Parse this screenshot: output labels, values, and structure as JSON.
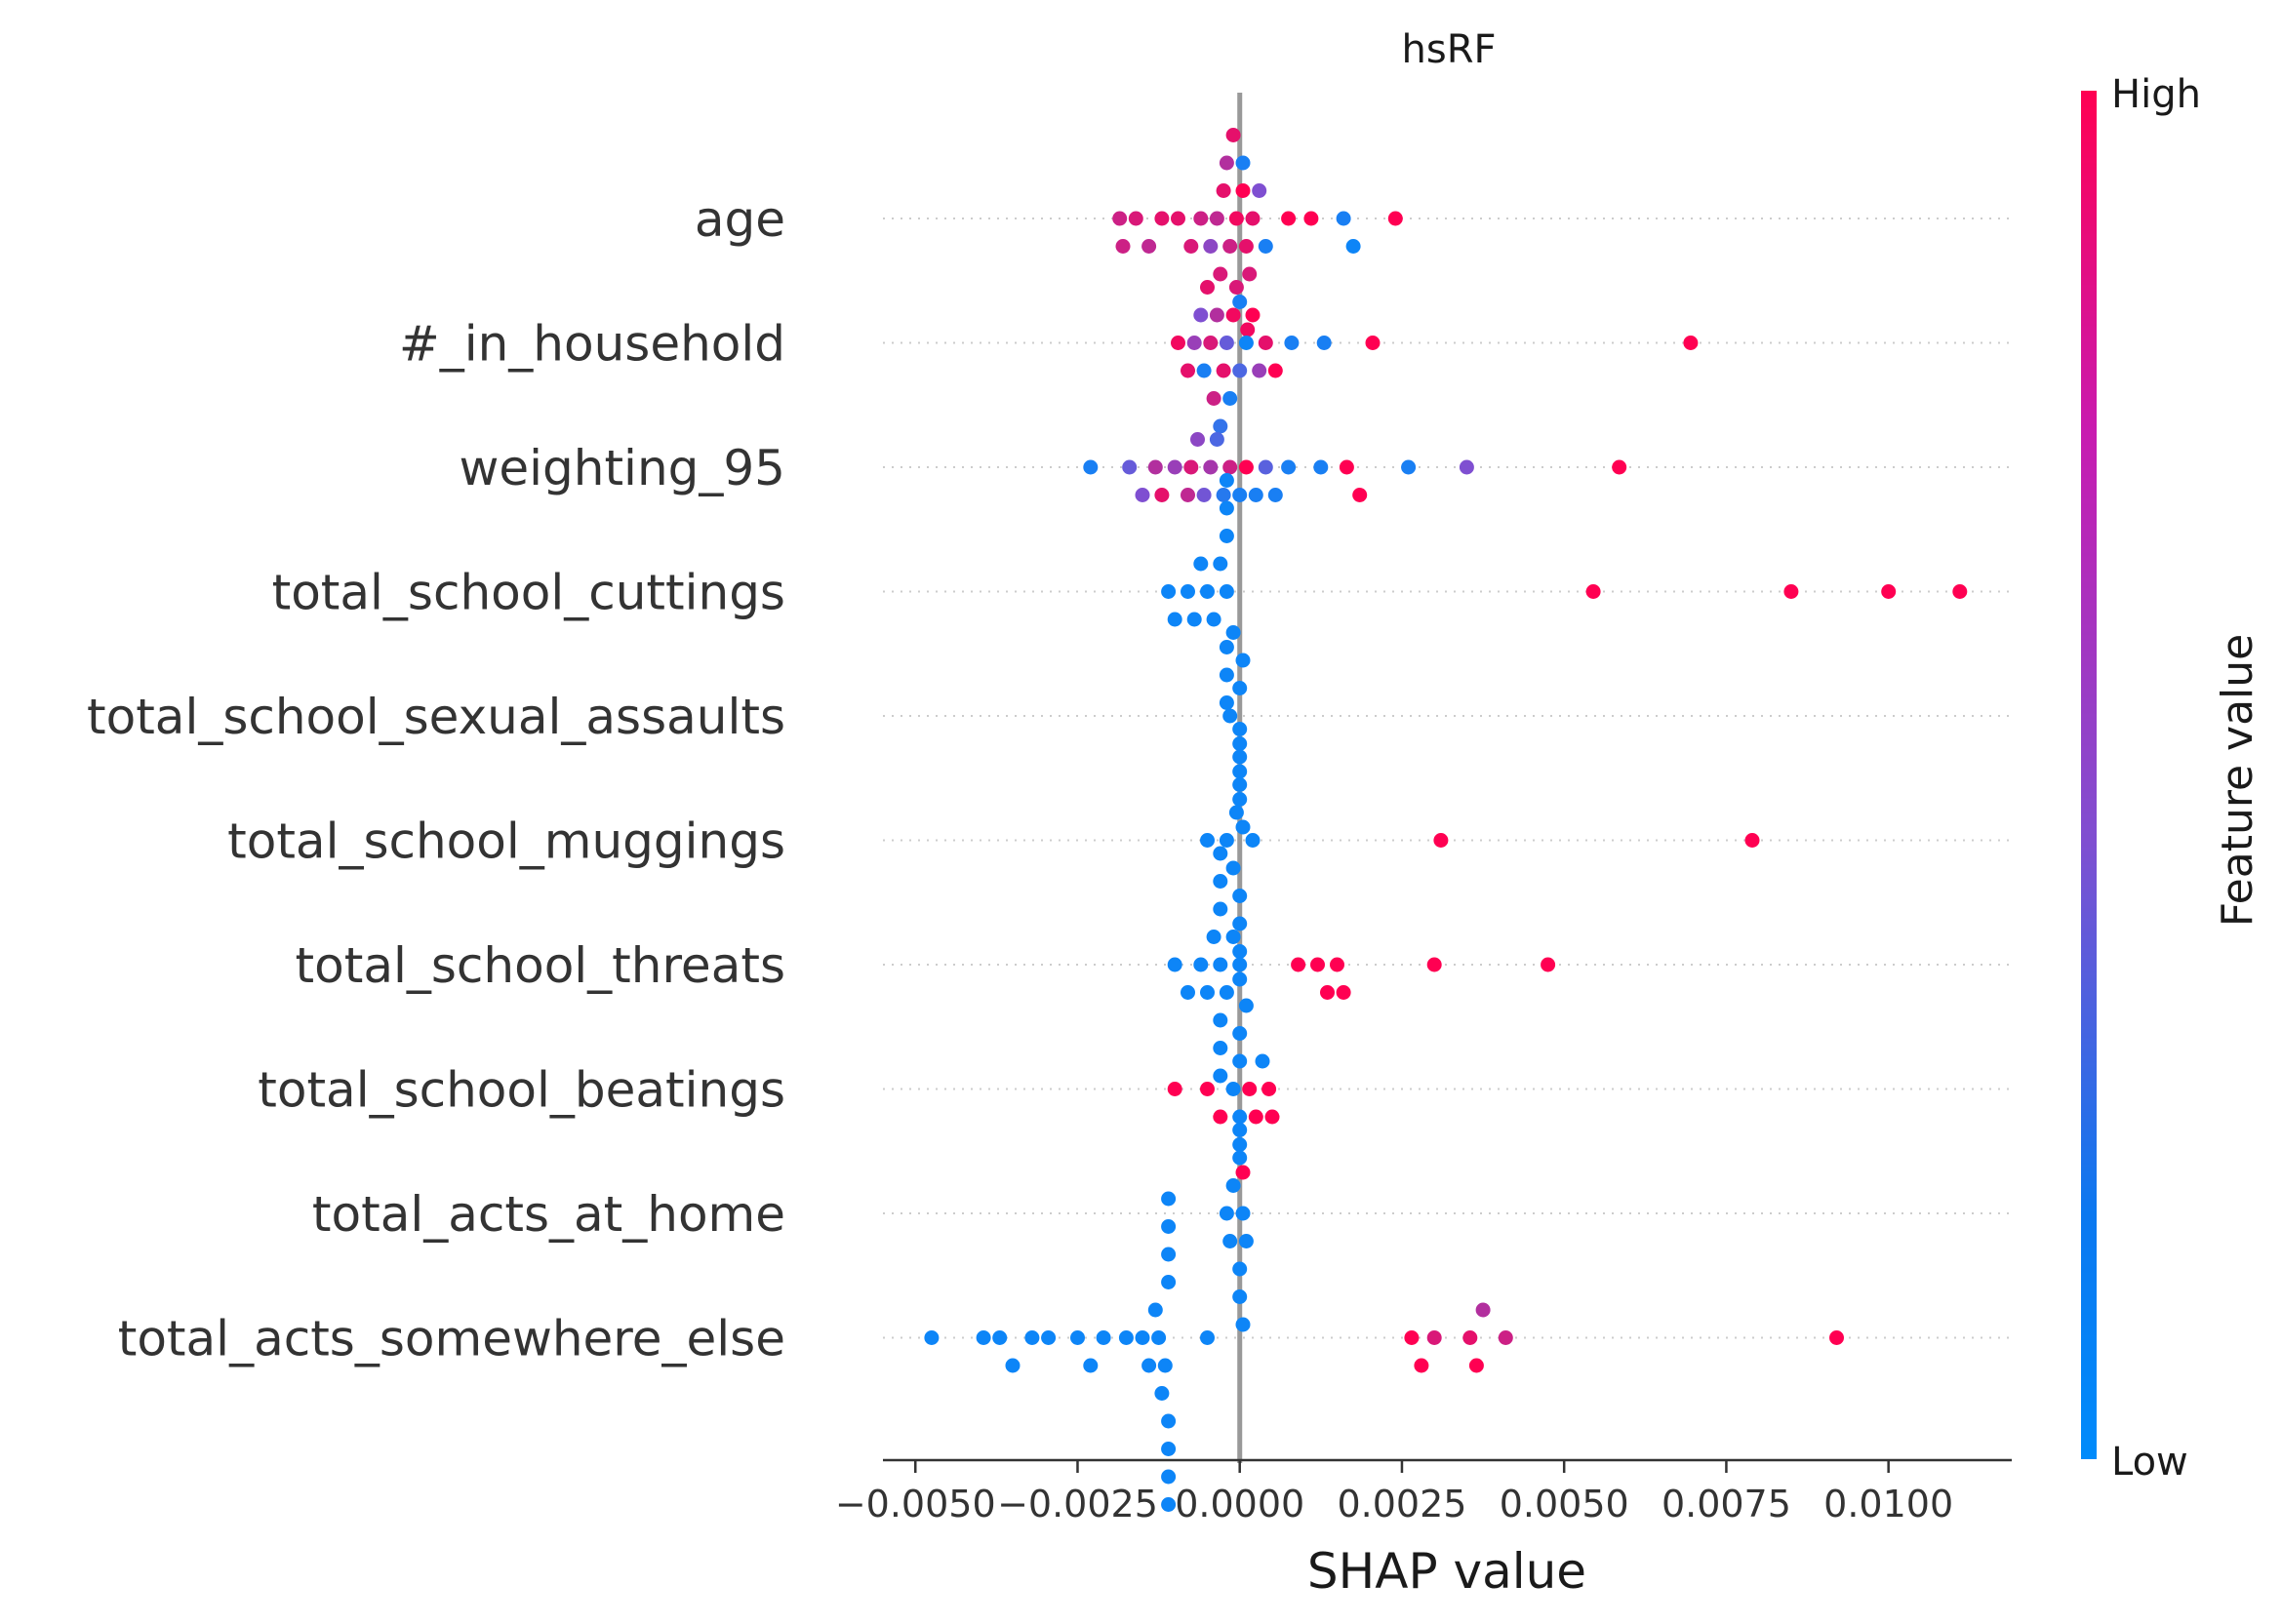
{
  "chart_data": {
    "type": "scatter",
    "subtype": "shap-beeswarm",
    "title": "hsRF",
    "xlabel": "SHAP value",
    "xlim": [
      -0.0055,
      0.0119
    ],
    "xticks": [
      -0.005,
      -0.0025,
      0.0,
      0.0025,
      0.005,
      0.0075,
      0.01
    ],
    "xtick_labels": [
      "−0.0050",
      "−0.0025",
      "0.0000",
      "0.0025",
      "0.0050",
      "0.0075",
      "0.0100"
    ],
    "features": [
      "age",
      "#_in_household",
      "weighting_95",
      "total_school_cuttings",
      "total_school_sexual_assaults",
      "total_school_muggings",
      "total_school_threats",
      "total_school_beatings",
      "total_acts_at_home",
      "total_acts_somewhere_else"
    ],
    "colorbar": {
      "label": "Feature value",
      "high_label": "High",
      "low_label": "Low",
      "high_color": "#ff0052",
      "mid_color": "#7f4fd1",
      "low_color": "#008bfb"
    },
    "series": [
      {
        "feature": "age",
        "points": [
          {
            "x": -0.00185,
            "v": 0.8
          },
          {
            "x": -0.0018,
            "v": 0.8
          },
          {
            "x": -0.0016,
            "v": 0.85
          },
          {
            "x": -0.0014,
            "v": 0.75
          },
          {
            "x": -0.0012,
            "v": 0.9
          },
          {
            "x": -0.00095,
            "v": 0.9
          },
          {
            "x": -0.00075,
            "v": 0.85
          },
          {
            "x": -0.0006,
            "v": 0.8
          },
          {
            "x": -0.00045,
            "v": 0.55
          },
          {
            "x": -0.00035,
            "v": 0.75
          },
          {
            "x": -0.00025,
            "v": 0.9
          },
          {
            "x": -0.00015,
            "v": 0.8
          },
          {
            "x": -5e-05,
            "v": 0.95
          },
          {
            "x": 5e-05,
            "v": 1.0
          },
          {
            "x": 0.0001,
            "v": 0.9
          },
          {
            "x": 0.00015,
            "v": 0.85
          },
          {
            "x": 0.0002,
            "v": 0.9
          },
          {
            "x": 0.0003,
            "v": 0.5
          },
          {
            "x": 0.0004,
            "v": 0.1
          },
          {
            "x": 0.00075,
            "v": 1.0
          },
          {
            "x": 0.0011,
            "v": 1.0
          },
          {
            "x": 0.0016,
            "v": 0.1
          },
          {
            "x": 0.00175,
            "v": 0.05
          },
          {
            "x": 0.0024,
            "v": 1.0
          },
          {
            "x": 5e-05,
            "v": 0.1
          },
          {
            "x": 0.0,
            "v": 0.1
          },
          {
            "x": -0.0003,
            "v": 0.85
          },
          {
            "x": -0.0001,
            "v": 0.9
          },
          {
            "x": 0.00012,
            "v": 0.95
          },
          {
            "x": -0.0002,
            "v": 0.7
          }
        ]
      },
      {
        "feature": "#_in_household",
        "points": [
          {
            "x": -0.00095,
            "v": 0.95
          },
          {
            "x": -0.0008,
            "v": 0.9
          },
          {
            "x": -0.0007,
            "v": 0.6
          },
          {
            "x": -0.0006,
            "v": 0.5
          },
          {
            "x": -0.00055,
            "v": 0.1
          },
          {
            "x": -0.00045,
            "v": 0.85
          },
          {
            "x": -0.0004,
            "v": 0.8
          },
          {
            "x": -0.00035,
            "v": 0.7
          },
          {
            "x": -0.00025,
            "v": 0.9
          },
          {
            "x": -0.0002,
            "v": 0.4
          },
          {
            "x": -0.00015,
            "v": 0.1
          },
          {
            "x": -0.0001,
            "v": 0.95
          },
          {
            "x": 0.0,
            "v": 0.3
          },
          {
            "x": 0.0001,
            "v": 0.05
          },
          {
            "x": 0.0002,
            "v": 1.0
          },
          {
            "x": 0.0003,
            "v": 0.6
          },
          {
            "x": 0.0004,
            "v": 0.9
          },
          {
            "x": 0.00055,
            "v": 1.0
          },
          {
            "x": 0.0008,
            "v": 0.1
          },
          {
            "x": 0.0013,
            "v": 0.1
          },
          {
            "x": 0.00205,
            "v": 1.0
          },
          {
            "x": 0.00695,
            "v": 1.0
          },
          {
            "x": -0.0005,
            "v": 0.9
          },
          {
            "x": -0.0003,
            "v": 0.2
          },
          {
            "x": -5e-05,
            "v": 0.85
          }
        ]
      },
      {
        "feature": "weighting_95",
        "points": [
          {
            "x": -0.0023,
            "v": 0.1
          },
          {
            "x": -0.0017,
            "v": 0.4
          },
          {
            "x": -0.0015,
            "v": 0.5
          },
          {
            "x": -0.0013,
            "v": 0.7
          },
          {
            "x": -0.0012,
            "v": 0.9
          },
          {
            "x": -0.001,
            "v": 0.6
          },
          {
            "x": -0.0008,
            "v": 0.75
          },
          {
            "x": -0.00075,
            "v": 0.85
          },
          {
            "x": -0.00065,
            "v": 0.55
          },
          {
            "x": -0.00055,
            "v": 0.45
          },
          {
            "x": -0.00045,
            "v": 0.65
          },
          {
            "x": -0.00035,
            "v": 0.3
          },
          {
            "x": -0.00025,
            "v": 0.15
          },
          {
            "x": -0.00015,
            "v": 0.8
          },
          {
            "x": 0.0,
            "v": 0.1
          },
          {
            "x": 0.0001,
            "v": 1.0
          },
          {
            "x": 0.00025,
            "v": 0.1
          },
          {
            "x": 0.0004,
            "v": 0.35
          },
          {
            "x": 0.00055,
            "v": 0.1
          },
          {
            "x": 0.00075,
            "v": 0.1
          },
          {
            "x": 0.00125,
            "v": 0.1
          },
          {
            "x": 0.00165,
            "v": 1.0
          },
          {
            "x": 0.00185,
            "v": 1.0
          },
          {
            "x": 0.0026,
            "v": 0.1
          },
          {
            "x": 0.0035,
            "v": 0.5
          },
          {
            "x": 0.00585,
            "v": 1.0
          }
        ]
      },
      {
        "feature": "total_school_cuttings",
        "points": [
          {
            "x": -0.0011,
            "v": 0.05
          },
          {
            "x": -0.001,
            "v": 0.05
          },
          {
            "x": -0.0008,
            "v": 0.05
          },
          {
            "x": -0.0007,
            "v": 0.05
          },
          {
            "x": -0.0006,
            "v": 0.05
          },
          {
            "x": -0.0005,
            "v": 0.05
          },
          {
            "x": -0.0004,
            "v": 0.05
          },
          {
            "x": -0.0003,
            "v": 0.05
          },
          {
            "x": -0.0002,
            "v": 0.05
          },
          {
            "x": -0.0002,
            "v": 0.05
          },
          {
            "x": -0.0002,
            "v": 0.05
          },
          {
            "x": -0.0002,
            "v": 0.05
          },
          {
            "x": -0.0002,
            "v": 0.05
          },
          {
            "x": -0.0002,
            "v": 0.05
          },
          {
            "x": -0.0002,
            "v": 0.05
          },
          {
            "x": 0.00545,
            "v": 1.0
          },
          {
            "x": 0.0085,
            "v": 1.0
          },
          {
            "x": 0.01,
            "v": 1.0
          },
          {
            "x": 0.0111,
            "v": 1.0
          }
        ]
      },
      {
        "feature": "total_school_sexual_assaults",
        "points": [
          {
            "x": -0.00015,
            "v": 0.05
          },
          {
            "x": 0.0,
            "v": 0.05
          },
          {
            "x": 0.0,
            "v": 0.05
          },
          {
            "x": 0.0,
            "v": 0.05
          },
          {
            "x": 5e-05,
            "v": 0.05
          },
          {
            "x": 0.0,
            "v": 0.05
          },
          {
            "x": -0.0001,
            "v": 0.05
          },
          {
            "x": 5e-05,
            "v": 0.05
          }
        ]
      },
      {
        "feature": "total_school_muggings",
        "points": [
          {
            "x": -0.0005,
            "v": 0.05
          },
          {
            "x": -0.0002,
            "v": 0.05
          },
          {
            "x": -0.0001,
            "v": 0.05
          },
          {
            "x": -5e-05,
            "v": 0.05
          },
          {
            "x": 0.0,
            "v": 0.05
          },
          {
            "x": 0.0,
            "v": 0.05
          },
          {
            "x": 0.0,
            "v": 0.05
          },
          {
            "x": 0.0,
            "v": 0.05
          },
          {
            "x": 0.0,
            "v": 0.05
          },
          {
            "x": 0.0,
            "v": 0.05
          },
          {
            "x": 0.0,
            "v": 0.05
          },
          {
            "x": 0.0002,
            "v": 0.05
          },
          {
            "x": 0.0031,
            "v": 1.0
          },
          {
            "x": 0.0079,
            "v": 1.0
          }
        ]
      },
      {
        "feature": "total_school_threats",
        "points": [
          {
            "x": -0.001,
            "v": 0.05
          },
          {
            "x": -0.0008,
            "v": 0.05
          },
          {
            "x": -0.0006,
            "v": 0.05
          },
          {
            "x": -0.0005,
            "v": 0.05
          },
          {
            "x": -0.0004,
            "v": 0.05
          },
          {
            "x": -0.0003,
            "v": 0.05
          },
          {
            "x": -0.0003,
            "v": 0.05
          },
          {
            "x": -0.0003,
            "v": 0.05
          },
          {
            "x": -0.0003,
            "v": 0.05
          },
          {
            "x": -0.0003,
            "v": 0.05
          },
          {
            "x": -0.0003,
            "v": 0.05
          },
          {
            "x": -0.0003,
            "v": 0.05
          },
          {
            "x": -0.0002,
            "v": 0.05
          },
          {
            "x": -0.0001,
            "v": 0.05
          },
          {
            "x": 0.0,
            "v": 0.05
          },
          {
            "x": 0.0009,
            "v": 1.0
          },
          {
            "x": 0.0012,
            "v": 1.0
          },
          {
            "x": 0.00135,
            "v": 1.0
          },
          {
            "x": 0.0015,
            "v": 1.0
          },
          {
            "x": 0.0016,
            "v": 1.0
          },
          {
            "x": 0.003,
            "v": 1.0
          },
          {
            "x": 0.00475,
            "v": 1.0
          }
        ]
      },
      {
        "feature": "total_school_beatings",
        "points": [
          {
            "x": -0.001,
            "v": 1.0
          },
          {
            "x": -0.0005,
            "v": 1.0
          },
          {
            "x": -0.0001,
            "v": 0.05
          },
          {
            "x": 0.0,
            "v": 0.05
          },
          {
            "x": 0.0,
            "v": 0.05
          },
          {
            "x": 0.0,
            "v": 0.05
          },
          {
            "x": 0.0,
            "v": 0.05
          },
          {
            "x": 5e-05,
            "v": 1.0
          },
          {
            "x": 0.0001,
            "v": 0.05
          },
          {
            "x": 0.00015,
            "v": 1.0
          },
          {
            "x": 0.00025,
            "v": 1.0
          },
          {
            "x": 0.00045,
            "v": 1.0
          },
          {
            "x": 0.0005,
            "v": 1.0
          },
          {
            "x": -0.0003,
            "v": 1.0
          },
          {
            "x": 0.00035,
            "v": 0.05
          }
        ]
      },
      {
        "feature": "total_acts_at_home",
        "points": [
          {
            "x": -0.0002,
            "v": 0.05
          },
          {
            "x": -0.00015,
            "v": 0.05
          },
          {
            "x": -0.0001,
            "v": 0.05
          },
          {
            "x": 0.0,
            "v": 0.05
          },
          {
            "x": 0.0,
            "v": 0.05
          },
          {
            "x": 0.0,
            "v": 0.05
          },
          {
            "x": 0.0,
            "v": 0.05
          },
          {
            "x": 5e-05,
            "v": 0.05
          },
          {
            "x": 5e-05,
            "v": 0.05
          },
          {
            "x": 0.0001,
            "v": 0.05
          }
        ]
      },
      {
        "feature": "total_acts_somewhere_else",
        "points": [
          {
            "x": -0.00475,
            "v": 0.05
          },
          {
            "x": -0.00395,
            "v": 0.05
          },
          {
            "x": -0.0037,
            "v": 0.05
          },
          {
            "x": -0.0035,
            "v": 0.05
          },
          {
            "x": -0.0032,
            "v": 0.05
          },
          {
            "x": -0.00295,
            "v": 0.05
          },
          {
            "x": -0.0025,
            "v": 0.05
          },
          {
            "x": -0.0023,
            "v": 0.05
          },
          {
            "x": -0.0021,
            "v": 0.05
          },
          {
            "x": -0.00175,
            "v": 0.05
          },
          {
            "x": -0.0015,
            "v": 0.05
          },
          {
            "x": -0.0014,
            "v": 0.05
          },
          {
            "x": -0.0013,
            "v": 0.05
          },
          {
            "x": -0.00125,
            "v": 0.05
          },
          {
            "x": -0.0012,
            "v": 0.05
          },
          {
            "x": -0.00115,
            "v": 0.05
          },
          {
            "x": -0.0011,
            "v": 0.05
          },
          {
            "x": -0.0011,
            "v": 0.05
          },
          {
            "x": -0.0011,
            "v": 0.05
          },
          {
            "x": -0.0011,
            "v": 0.05
          },
          {
            "x": -0.0011,
            "v": 0.05
          },
          {
            "x": -0.0011,
            "v": 0.05
          },
          {
            "x": -0.0011,
            "v": 0.05
          },
          {
            "x": -0.0011,
            "v": 0.05
          },
          {
            "x": -0.0005,
            "v": 0.05
          },
          {
            "x": 0.00265,
            "v": 1.0
          },
          {
            "x": 0.0028,
            "v": 1.0
          },
          {
            "x": 0.003,
            "v": 0.85
          },
          {
            "x": 0.00355,
            "v": 0.9
          },
          {
            "x": 0.00365,
            "v": 1.0
          },
          {
            "x": 0.00375,
            "v": 0.7
          },
          {
            "x": 0.0041,
            "v": 0.8
          },
          {
            "x": 0.0092,
            "v": 1.0
          }
        ]
      }
    ]
  }
}
